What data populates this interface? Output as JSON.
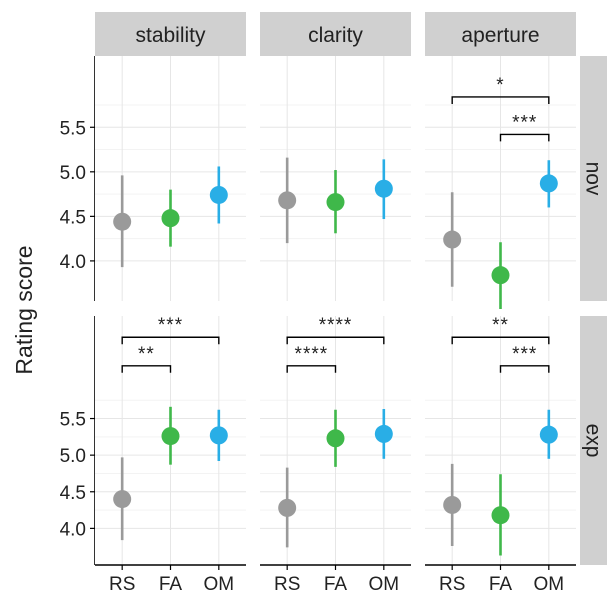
{
  "chart_data": {
    "type": "scatter",
    "chart_kind": "faceted point-range (mean with error bars)",
    "ylabel": "Rating score",
    "xlabel": "",
    "categories": [
      "RS",
      "FA",
      "OM"
    ],
    "category_colors": {
      "RS": "#9a9a9a",
      "FA": "#3fb84a",
      "OM": "#29aee6"
    },
    "column_facets": [
      "stability",
      "clarity",
      "aperture"
    ],
    "row_facets": [
      "nov",
      "exp"
    ],
    "y_ticks": [
      "4.0",
      "4.5",
      "5.0",
      "5.5"
    ],
    "rows": [
      {
        "row": "nov",
        "ylim": [
          3.55,
          6.3
        ],
        "panels": [
          {
            "column": "stability",
            "points": [
              {
                "x": "RS",
                "mean": 4.44,
                "low": 3.93,
                "high": 4.96
              },
              {
                "x": "FA",
                "mean": 4.48,
                "low": 4.16,
                "high": 4.8
              },
              {
                "x": "OM",
                "mean": 4.74,
                "low": 4.42,
                "high": 5.06
              }
            ],
            "brackets": []
          },
          {
            "column": "clarity",
            "points": [
              {
                "x": "RS",
                "mean": 4.68,
                "low": 4.2,
                "high": 5.16
              },
              {
                "x": "FA",
                "mean": 4.66,
                "low": 4.31,
                "high": 5.02
              },
              {
                "x": "OM",
                "mean": 4.81,
                "low": 4.47,
                "high": 5.14
              }
            ],
            "brackets": []
          },
          {
            "column": "aperture",
            "points": [
              {
                "x": "RS",
                "mean": 4.24,
                "low": 3.71,
                "high": 4.77
              },
              {
                "x": "FA",
                "mean": 3.84,
                "low": 3.46,
                "high": 4.21
              },
              {
                "x": "OM",
                "mean": 4.87,
                "low": 4.6,
                "high": 5.13
              }
            ],
            "brackets": [
              {
                "from": "RS",
                "to": "OM",
                "y": 5.84,
                "label": "*"
              },
              {
                "from": "FA",
                "to": "OM",
                "y": 5.42,
                "label": "***"
              }
            ]
          }
        ]
      },
      {
        "row": "exp",
        "ylim": [
          3.5,
          6.9
        ],
        "panels": [
          {
            "column": "stability",
            "points": [
              {
                "x": "RS",
                "mean": 4.4,
                "low": 3.84,
                "high": 4.97
              },
              {
                "x": "FA",
                "mean": 5.26,
                "low": 4.87,
                "high": 5.66
              },
              {
                "x": "OM",
                "mean": 5.27,
                "low": 4.92,
                "high": 5.62
              }
            ],
            "brackets": [
              {
                "from": "RS",
                "to": "OM",
                "y": 6.61,
                "label": "***"
              },
              {
                "from": "RS",
                "to": "FA",
                "y": 6.22,
                "label": "**"
              }
            ]
          },
          {
            "column": "clarity",
            "points": [
              {
                "x": "RS",
                "mean": 4.28,
                "low": 3.74,
                "high": 4.83
              },
              {
                "x": "FA",
                "mean": 5.23,
                "low": 4.84,
                "high": 5.62
              },
              {
                "x": "OM",
                "mean": 5.29,
                "low": 4.95,
                "high": 5.63
              }
            ],
            "brackets": [
              {
                "from": "RS",
                "to": "OM",
                "y": 6.61,
                "label": "****"
              },
              {
                "from": "RS",
                "to": "FA",
                "y": 6.22,
                "label": "****"
              }
            ]
          },
          {
            "column": "aperture",
            "points": [
              {
                "x": "RS",
                "mean": 4.32,
                "low": 3.76,
                "high": 4.88
              },
              {
                "x": "FA",
                "mean": 4.18,
                "low": 3.63,
                "high": 4.74
              },
              {
                "x": "OM",
                "mean": 5.28,
                "low": 4.95,
                "high": 5.62
              }
            ],
            "brackets": [
              {
                "from": "RS",
                "to": "OM",
                "y": 6.61,
                "label": "**"
              },
              {
                "from": "FA",
                "to": "OM",
                "y": 6.22,
                "label": "***"
              }
            ]
          }
        ]
      }
    ],
    "grid": true,
    "legend": "none"
  }
}
